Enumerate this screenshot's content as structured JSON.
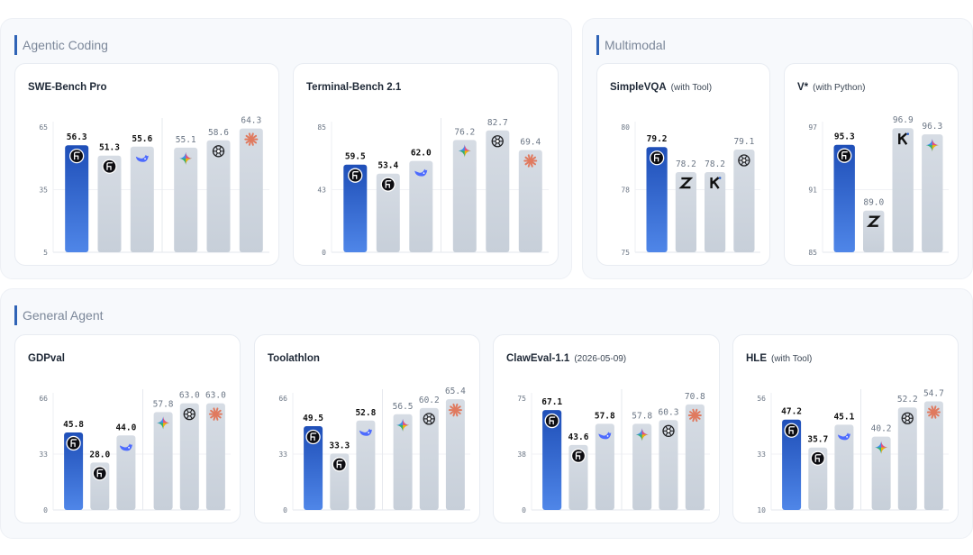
{
  "sections": [
    {
      "id": "agentic",
      "title": "Agentic Coding"
    },
    {
      "id": "multimodal",
      "title": "Multimodal"
    },
    {
      "id": "general",
      "title": "General Agent"
    }
  ],
  "colors": {
    "highlight_bar": "#2f63c9",
    "other_bar": "#d3dae2",
    "label_dark": "#111111",
    "label_muted": "#6b7685",
    "axis": "#9aa3ae"
  },
  "chart_data": [
    {
      "type": "bar",
      "title": "SWE-Bench Pro",
      "subtitle": "",
      "yticks": [
        "65",
        "35",
        "5"
      ],
      "ylim": [
        5,
        65
      ],
      "values": [
        56.3,
        51.3,
        55.6,
        55.1,
        58.6,
        64.3
      ],
      "labels": [
        "56.3",
        "51.3",
        "55.6",
        "55.1",
        "58.6",
        "64.3"
      ],
      "icons": [
        "model-a-icon",
        "model-b-icon",
        "whale-icon",
        "star-icon",
        "openai-icon",
        "sunburst-icon"
      ],
      "highlight": [
        true,
        false,
        false,
        false,
        false,
        false
      ],
      "bold_labels": [
        true,
        true,
        true,
        false,
        false,
        false
      ],
      "groups": [
        3,
        3
      ]
    },
    {
      "type": "bar",
      "title": "Terminal-Bench 2.1",
      "subtitle": "",
      "yticks": [
        "85",
        "43",
        "0"
      ],
      "ylim": [
        0,
        85
      ],
      "values": [
        59.5,
        53.4,
        62.0,
        76.2,
        82.7,
        69.4
      ],
      "labels": [
        "59.5",
        "53.4",
        "62.0",
        "76.2",
        "82.7",
        "69.4"
      ],
      "icons": [
        "model-a-icon",
        "model-b-icon",
        "whale-icon",
        "star-icon",
        "openai-icon",
        "sunburst-icon"
      ],
      "highlight": [
        true,
        false,
        false,
        false,
        false,
        false
      ],
      "bold_labels": [
        true,
        true,
        true,
        false,
        false,
        false
      ],
      "groups": [
        3,
        3
      ]
    },
    {
      "type": "bar",
      "title": "SimpleVQA",
      "subtitle": "(with Tool)",
      "yticks": [
        "80",
        "78",
        "75"
      ],
      "ylim": [
        75,
        80
      ],
      "values": [
        79.2,
        78.2,
        78.2,
        79.1
      ],
      "labels": [
        "79.2",
        "78.2",
        "78.2",
        "79.1"
      ],
      "icons": [
        "model-a-icon",
        "z-icon",
        "k-icon",
        "openai-icon"
      ],
      "highlight": [
        true,
        false,
        false,
        false
      ],
      "bold_labels": [
        true,
        false,
        false,
        false
      ],
      "groups": [
        4
      ]
    },
    {
      "type": "bar",
      "title": "V*",
      "subtitle": "(with Python)",
      "yticks": [
        "97",
        "91",
        "85"
      ],
      "ylim": [
        85,
        97
      ],
      "values": [
        95.3,
        89.0,
        96.9,
        96.3
      ],
      "labels": [
        "95.3",
        "89.0",
        "96.9",
        "96.3"
      ],
      "icons": [
        "model-a-icon",
        "z-icon",
        "k-icon",
        "star-icon"
      ],
      "highlight": [
        true,
        false,
        false,
        false
      ],
      "bold_labels": [
        true,
        false,
        false,
        false
      ],
      "groups": [
        4
      ]
    },
    {
      "type": "bar",
      "title": "GDPval",
      "subtitle": "",
      "yticks": [
        "66",
        "33",
        "0"
      ],
      "ylim": [
        0,
        66
      ],
      "values": [
        45.8,
        28.0,
        44.0,
        57.8,
        63.0,
        63.0
      ],
      "labels": [
        "45.8",
        "28.0",
        "44.0",
        "57.8",
        "63.0",
        "63.0"
      ],
      "icons": [
        "model-a-icon",
        "model-b-icon",
        "whale-icon",
        "star-icon",
        "openai-icon",
        "sunburst-icon"
      ],
      "highlight": [
        true,
        false,
        false,
        false,
        false,
        false
      ],
      "bold_labels": [
        true,
        true,
        true,
        false,
        false,
        false
      ],
      "groups": [
        3,
        3
      ]
    },
    {
      "type": "bar",
      "title": "Toolathlon",
      "subtitle": "",
      "yticks": [
        "66",
        "33",
        "0"
      ],
      "ylim": [
        0,
        66
      ],
      "values": [
        49.5,
        33.3,
        52.8,
        56.5,
        60.2,
        65.4
      ],
      "labels": [
        "49.5",
        "33.3",
        "52.8",
        "56.5",
        "60.2",
        "65.4"
      ],
      "icons": [
        "model-a-icon",
        "model-b-icon",
        "whale-icon",
        "star-icon",
        "openai-icon",
        "sunburst-icon"
      ],
      "highlight": [
        true,
        false,
        false,
        false,
        false,
        false
      ],
      "bold_labels": [
        true,
        true,
        true,
        false,
        false,
        false
      ],
      "groups": [
        3,
        3
      ]
    },
    {
      "type": "bar",
      "title": "ClawEval-1.1",
      "subtitle": "(2026-05-09)",
      "yticks": [
        "75",
        "38",
        "0"
      ],
      "ylim": [
        0,
        75
      ],
      "values": [
        67.1,
        43.6,
        57.8,
        57.8,
        60.3,
        70.8
      ],
      "labels": [
        "67.1",
        "43.6",
        "57.8",
        "57.8",
        "60.3",
        "70.8"
      ],
      "icons": [
        "model-a-icon",
        "model-b-icon",
        "whale-icon",
        "star-icon",
        "openai-icon",
        "sunburst-icon"
      ],
      "highlight": [
        true,
        false,
        false,
        false,
        false,
        false
      ],
      "bold_labels": [
        true,
        true,
        true,
        false,
        false,
        false
      ],
      "groups": [
        3,
        3
      ]
    },
    {
      "type": "bar",
      "title": "HLE",
      "subtitle": "(with Tool)",
      "yticks": [
        "56",
        "33",
        "10"
      ],
      "ylim": [
        10,
        56
      ],
      "values": [
        47.2,
        35.7,
        45.1,
        40.2,
        52.2,
        54.7
      ],
      "labels": [
        "47.2",
        "35.7",
        "45.1",
        "40.2",
        "52.2",
        "54.7"
      ],
      "icons": [
        "model-a-icon",
        "model-b-icon",
        "whale-icon",
        "star-icon",
        "openai-icon",
        "sunburst-icon"
      ],
      "highlight": [
        true,
        false,
        false,
        false,
        false,
        false
      ],
      "bold_labels": [
        true,
        true,
        true,
        false,
        false,
        false
      ],
      "groups": [
        3,
        3
      ]
    }
  ]
}
